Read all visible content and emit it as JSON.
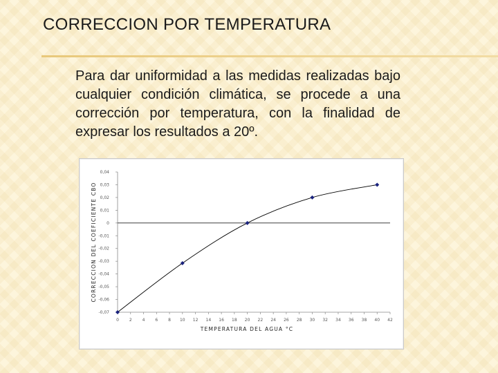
{
  "slide": {
    "title": "CORRECCION POR TEMPERATURA",
    "body": "Para dar uniformidad a las medidas realizadas bajo cualquier condición climática, se procede a una corrección por temperatura, con la finalidad de expresar los resultados a 20º."
  },
  "chart_data": {
    "type": "line",
    "xlabel": "TEMPERATURA DEL AGUA °C",
    "ylabel": "CORRECCION DEL COEFICIENTE CBO",
    "xlim": [
      0,
      42
    ],
    "ylim": [
      -0.07,
      0.04
    ],
    "x_ticks": [
      "0",
      "2",
      "4",
      "6",
      "8",
      "10",
      "12",
      "14",
      "16",
      "18",
      "20",
      "22",
      "24",
      "26",
      "28",
      "30",
      "32",
      "34",
      "36",
      "38",
      "40",
      "42"
    ],
    "y_ticks": [
      "0,04",
      "0,03",
      "0,02",
      "0,01",
      "0",
      "-0,01",
      "-0,02",
      "-0,03",
      "-0,04",
      "-0,05",
      "-0,06",
      "-0,07"
    ],
    "grid": false,
    "zero_line": true,
    "series": [
      {
        "x": [
          0,
          10,
          20,
          30,
          40
        ],
        "y": [
          -0.07,
          -0.0315,
          0,
          0.02,
          0.03
        ]
      }
    ],
    "colors": {
      "line": "#000000",
      "marker": "#1a237e",
      "axis": "#888888"
    }
  }
}
